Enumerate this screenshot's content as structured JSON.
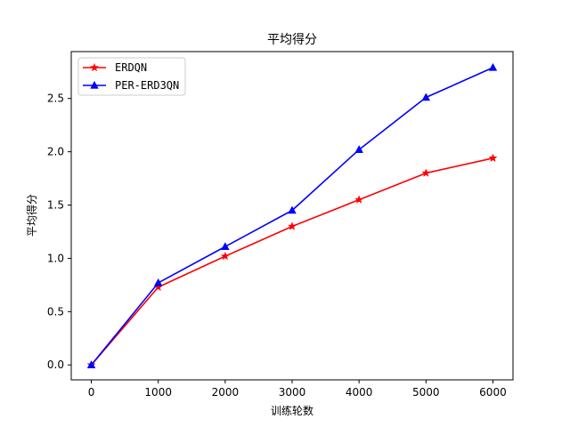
{
  "chart_data": {
    "type": "line",
    "title": "平均得分",
    "xlabel": "训练轮数",
    "ylabel": "平均得分",
    "x": [
      0,
      1000,
      2000,
      3000,
      4000,
      5000,
      6000
    ],
    "xlim": [
      -300,
      6300
    ],
    "ylim": [
      -0.14,
      2.94
    ],
    "xticks": [
      0,
      1000,
      2000,
      3000,
      4000,
      5000,
      6000
    ],
    "yticks": [
      0.0,
      0.5,
      1.0,
      1.5,
      2.0,
      2.5
    ],
    "xtick_labels": [
      "0",
      "1000",
      "2000",
      "3000",
      "4000",
      "5000",
      "6000"
    ],
    "ytick_labels": [
      "0.0",
      "0.5",
      "1.0",
      "1.5",
      "2.0",
      "2.5"
    ],
    "grid": false,
    "legend_position": "top-left",
    "series": [
      {
        "name": "ERDQN",
        "color": "#ff0000",
        "marker": "star",
        "values": [
          0.0,
          0.73,
          1.02,
          1.3,
          1.55,
          1.8,
          1.94
        ]
      },
      {
        "name": "PER-ERD3QN",
        "color": "#0000ff",
        "marker": "triangle",
        "values": [
          0.0,
          0.77,
          1.11,
          1.45,
          2.02,
          2.51,
          2.79
        ]
      }
    ]
  }
}
